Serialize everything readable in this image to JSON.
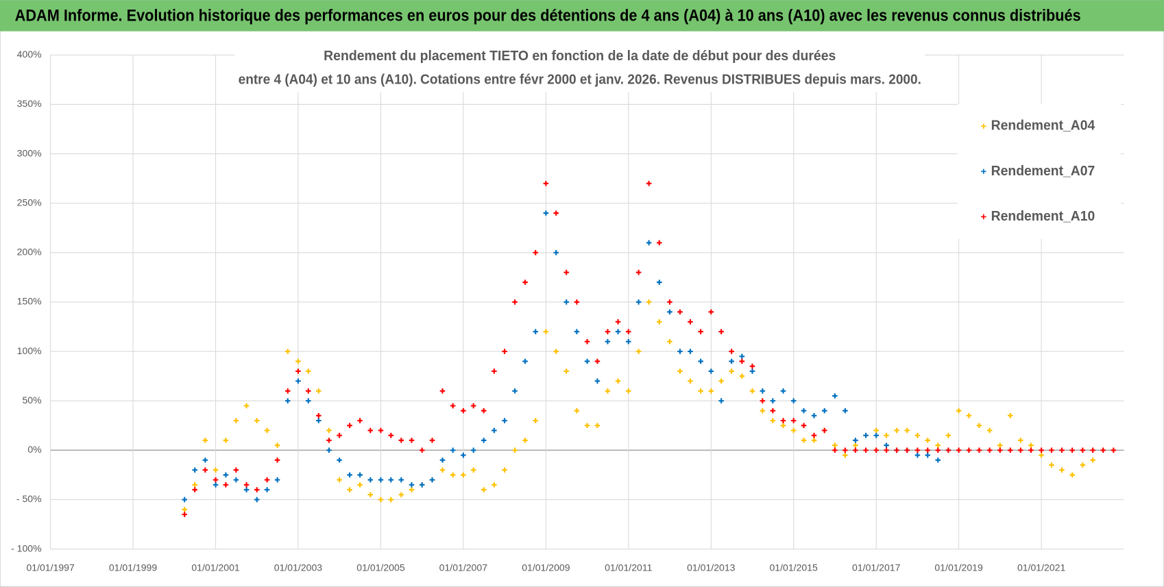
{
  "header": {
    "title": "ADAM Informe. Evolution historique des performances en euros pour des détentions de 4 ans (A04) à 10 ans (A10) avec les revenus connus distribués"
  },
  "chart_data": {
    "type": "scatter",
    "title": "Rendement du placement TIETO en fonction de la date de début pour des durées",
    "subtitle": "entre 4 (A04) et 10 ans (A10). Cotations entre févr 2000 et janv. 2026. Revenus DISTRIBUES depuis mars. 2000.",
    "x": [
      "2000-04-01",
      "2000-07-01",
      "2000-10-01",
      "2001-01-01",
      "2001-04-01",
      "2001-07-01",
      "2001-10-01",
      "2002-01-01",
      "2002-04-01",
      "2002-07-01",
      "2002-10-01",
      "2003-01-01",
      "2003-04-01",
      "2003-07-01",
      "2003-10-01",
      "2004-01-01",
      "2004-04-01",
      "2004-07-01",
      "2004-10-01",
      "2005-01-01",
      "2005-04-01",
      "2005-07-01",
      "2005-10-01",
      "2006-01-01",
      "2006-04-01",
      "2006-07-01",
      "2006-10-01",
      "2007-01-01",
      "2007-04-01",
      "2007-07-01",
      "2007-10-01",
      "2008-01-01",
      "2008-04-01",
      "2008-07-01",
      "2008-10-01",
      "2009-01-01",
      "2009-04-01",
      "2009-07-01",
      "2009-10-01",
      "2010-01-01",
      "2010-04-01",
      "2010-07-01",
      "2010-10-01",
      "2011-01-01",
      "2011-04-01",
      "2011-07-01",
      "2011-10-01",
      "2012-01-01",
      "2012-04-01",
      "2012-07-01",
      "2012-10-01",
      "2013-01-01",
      "2013-04-01",
      "2013-07-01",
      "2013-10-01",
      "2014-01-01",
      "2014-04-01",
      "2014-07-01",
      "2014-10-01",
      "2015-01-01",
      "2015-04-01",
      "2015-07-01",
      "2015-10-01",
      "2016-01-01",
      "2016-04-01",
      "2016-07-01",
      "2016-10-01",
      "2017-01-01",
      "2017-04-01",
      "2017-07-01",
      "2017-10-01",
      "2018-01-01",
      "2018-04-01",
      "2018-07-01",
      "2018-10-01",
      "2019-01-01",
      "2019-04-01",
      "2019-07-01",
      "2019-10-01",
      "2020-01-01",
      "2020-04-01",
      "2020-07-01",
      "2020-10-01",
      "2021-01-01",
      "2021-04-01",
      "2021-07-01",
      "2021-10-01",
      "2022-01-01",
      "2022-04-01",
      "2022-07-01",
      "2022-10-01"
    ],
    "series": [
      {
        "name": "Rendement_A04",
        "color": "#ffc000",
        "values": [
          -60,
          -35,
          10,
          -20,
          10,
          30,
          45,
          30,
          20,
          5,
          100,
          90,
          80,
          60,
          20,
          -30,
          -40,
          -35,
          -45,
          -50,
          -50,
          -45,
          -40,
          -35,
          -30,
          -20,
          -25,
          -25,
          -20,
          -40,
          -35,
          -20,
          0,
          10,
          30,
          120,
          100,
          80,
          40,
          25,
          25,
          60,
          70,
          60,
          100,
          150,
          130,
          110,
          80,
          70,
          60,
          60,
          70,
          80,
          75,
          60,
          40,
          30,
          25,
          20,
          10,
          10,
          20,
          5,
          -5,
          5,
          15,
          20,
          15,
          20,
          20,
          15,
          10,
          5,
          15,
          40,
          35,
          25,
          20,
          5,
          35,
          10,
          5,
          -5,
          -15,
          -20,
          -25,
          -15,
          -10,
          null,
          null
        ]
      },
      {
        "name": "Rendement_A07",
        "color": "#0070c0",
        "values": [
          -50,
          -20,
          -10,
          -35,
          -25,
          -30,
          -40,
          -50,
          -40,
          -30,
          50,
          70,
          50,
          30,
          0,
          -10,
          -25,
          -25,
          -30,
          -30,
          -30,
          -30,
          -35,
          -35,
          -30,
          -10,
          0,
          -5,
          0,
          10,
          20,
          30,
          60,
          90,
          120,
          240,
          200,
          150,
          120,
          90,
          70,
          110,
          120,
          110,
          150,
          210,
          170,
          140,
          100,
          100,
          90,
          80,
          50,
          90,
          95,
          80,
          60,
          50,
          60,
          50,
          40,
          35,
          40,
          55,
          40,
          10,
          15,
          15,
          5,
          0,
          0,
          -5,
          -5,
          -10,
          0,
          null,
          null,
          null,
          null,
          null,
          null,
          null,
          null,
          null,
          null,
          null,
          null,
          null,
          null,
          null,
          null
        ]
      },
      {
        "name": "Rendement_A10",
        "color": "#ff0000",
        "values": [
          -65,
          -40,
          -20,
          -30,
          -35,
          -20,
          -35,
          -40,
          -30,
          -10,
          60,
          80,
          60,
          35,
          10,
          15,
          25,
          30,
          20,
          20,
          15,
          10,
          10,
          0,
          10,
          60,
          45,
          40,
          45,
          40,
          80,
          100,
          150,
          170,
          200,
          270,
          240,
          180,
          150,
          110,
          90,
          120,
          130,
          120,
          180,
          270,
          210,
          150,
          140,
          130,
          120,
          140,
          120,
          100,
          90,
          85,
          50,
          40,
          30,
          30,
          25,
          15,
          20,
          0,
          0,
          0,
          0,
          0,
          0,
          0,
          0,
          0,
          0,
          0,
          0,
          0,
          0,
          0,
          0,
          0,
          0,
          0,
          0,
          0,
          0,
          0,
          0,
          0,
          0,
          0,
          0
        ]
      }
    ],
    "xlim": [
      "1997-01-01",
      "2023-01-01"
    ],
    "xticks": [
      {
        "value": "1997-01-01",
        "label": "01/01/1997"
      },
      {
        "value": "1999-01-01",
        "label": "01/01/1999"
      },
      {
        "value": "2001-01-01",
        "label": "01/01/2001"
      },
      {
        "value": "2003-01-01",
        "label": "01/01/2003"
      },
      {
        "value": "2005-01-01",
        "label": "01/01/2005"
      },
      {
        "value": "2007-01-01",
        "label": "01/01/2007"
      },
      {
        "value": "2009-01-01",
        "label": "01/01/2009"
      },
      {
        "value": "2011-01-01",
        "label": "01/01/2011"
      },
      {
        "value": "2013-01-01",
        "label": "01/01/2013"
      },
      {
        "value": "2015-01-01",
        "label": "01/01/2015"
      },
      {
        "value": "2017-01-01",
        "label": "01/01/2017"
      },
      {
        "value": "2019-01-01",
        "label": "01/01/2019"
      },
      {
        "value": "2021-01-01",
        "label": "01/01/2021"
      }
    ],
    "ylim": [
      -100,
      400
    ],
    "yticks": [
      {
        "value": -100,
        "label": "- 100%"
      },
      {
        "value": -50,
        "label": "- 50%"
      },
      {
        "value": 0,
        "label": "0%"
      },
      {
        "value": 50,
        "label": "50%"
      },
      {
        "value": 100,
        "label": "100%"
      },
      {
        "value": 150,
        "label": "150%"
      },
      {
        "value": 200,
        "label": "200%"
      },
      {
        "value": 250,
        "label": "250%"
      },
      {
        "value": 300,
        "label": "300%"
      },
      {
        "value": 350,
        "label": "350%"
      },
      {
        "value": 400,
        "label": "400%"
      }
    ],
    "grid": true,
    "legend": "top-right"
  }
}
